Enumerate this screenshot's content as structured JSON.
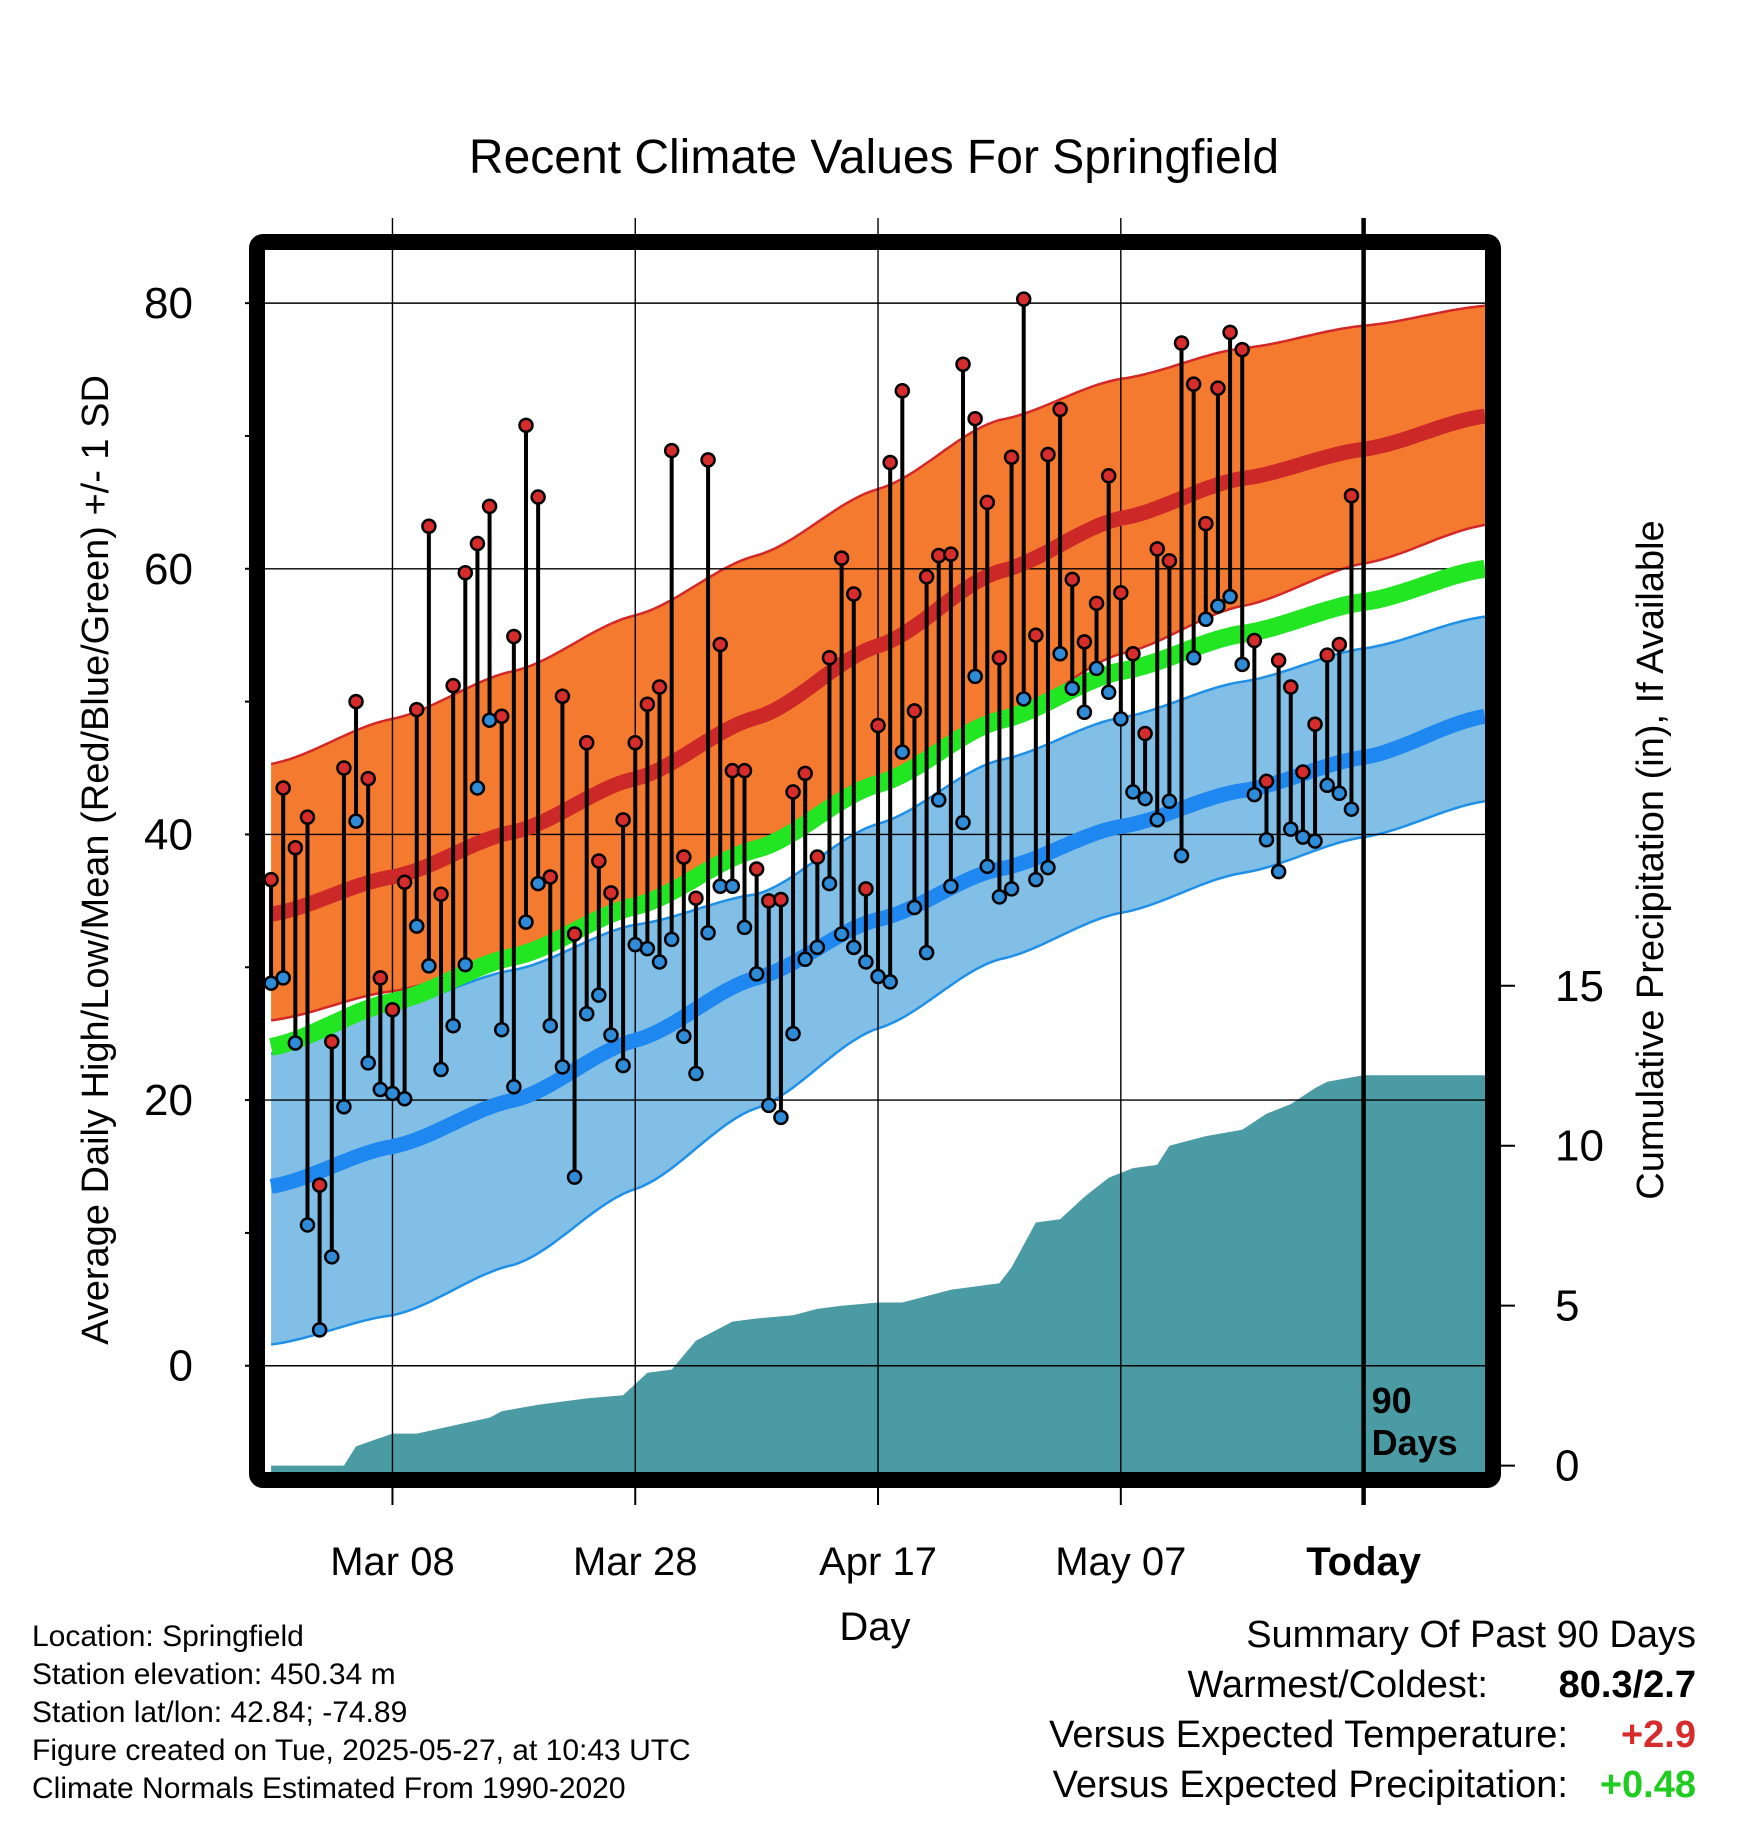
{
  "chart_data": {
    "type": "line",
    "title": "Recent Climate Values For Springfield",
    "xlabel": "Day",
    "ylabel_left": "Average Daily High/Low/Mean (Red/Blue/Green) +/- 1 SD",
    "ylabel_right": "Cumulative Precipitation (in), If Available",
    "x_tick_labels": [
      "Mar 08",
      "Mar 28",
      "Apr 17",
      "May 07",
      "Today"
    ],
    "x_tick_days": [
      10,
      30,
      50,
      70,
      90
    ],
    "xlim": [
      -0.5,
      100
    ],
    "ylim_left": [
      -8,
      84
    ],
    "left_ticks": [
      0,
      20,
      40,
      60,
      80
    ],
    "left_minor_ticks": [
      -10,
      10,
      30,
      50,
      70
    ],
    "right_ticks": [
      0,
      5,
      10,
      15
    ],
    "ylim_right": [
      -0.2,
      38
    ],
    "today_label": "90 Days",
    "grid": true,
    "colors": {
      "high_band": "#f47a2f",
      "high_band_edge": "#d42828",
      "high_mean": "#cc2828",
      "low_band": "#82bfe6",
      "low_band_edge": "#1e90e8",
      "low_mean": "#1e88f0",
      "mean_line": "#22e622",
      "precip_fill": "#4a9ba4",
      "high_dot": "#d62c2c",
      "low_dot": "#2e8bd8",
      "warm": "#d62c2c",
      "precip_good": "#1fcc1f"
    },
    "normals": {
      "days": [
        0,
        10,
        20,
        30,
        40,
        50,
        60,
        70,
        80,
        90,
        100
      ],
      "high_mean": [
        34,
        36.8,
        40.2,
        44.2,
        48.8,
        54.2,
        59.8,
        63.8,
        66.8,
        69,
        71.5
      ],
      "high_upper": [
        45.3,
        48.7,
        52.3,
        56.5,
        61,
        66,
        71.2,
        74.3,
        76.6,
        78.3,
        79.8
      ],
      "high_lower": [
        26,
        28.2,
        30.8,
        34.5,
        38.5,
        43.5,
        48.5,
        53.6,
        57.2,
        60.4,
        63.3
      ],
      "mean_line": [
        24,
        27.4,
        30.8,
        34.6,
        38.9,
        43.8,
        48.6,
        52.3,
        55.1,
        57.5,
        60
      ],
      "low_mean": [
        13.5,
        16.5,
        20,
        24.5,
        29.2,
        33.6,
        37.4,
        40.6,
        43.3,
        45.8,
        48.9
      ],
      "low_upper": [
        23.5,
        27,
        29.8,
        33.2,
        35.5,
        40.8,
        45.6,
        48.8,
        51.5,
        54,
        56.4
      ],
      "low_lower": [
        1.6,
        3.8,
        7.6,
        13.3,
        19.4,
        25.4,
        30.6,
        34.1,
        37.1,
        39.8,
        42.5
      ]
    },
    "daily": {
      "highs": [
        36.6,
        43.5,
        39,
        41.3,
        13.6,
        24.4,
        45,
        50,
        44.2,
        29.2,
        26.8,
        36.4,
        49.4,
        63.2,
        35.5,
        51.2,
        59.7,
        61.9,
        64.7,
        48.9,
        54.9,
        70.8,
        65.4,
        36.8,
        50.4,
        32.5,
        46.9,
        38,
        35.6,
        41.1,
        46.9,
        49.8,
        51.1,
        68.9,
        38.3,
        35.2,
        68.2,
        54.3,
        44.8,
        44.8,
        37.4,
        35,
        35.1,
        43.2,
        44.6,
        38.3,
        53.3,
        60.8,
        58.1,
        35.9,
        48.2,
        68,
        73.4,
        49.3,
        59.4,
        61,
        61.1,
        75.4,
        71.3,
        65,
        53.3,
        68.4,
        80.3,
        55,
        68.6,
        72,
        59.2,
        54.5,
        57.4,
        67,
        58.2,
        53.6,
        47.6,
        61.5,
        60.6,
        77,
        73.9,
        63.4,
        73.6,
        77.8,
        76.5,
        54.6,
        44,
        53.1,
        51.1,
        44.7,
        48.3,
        53.5,
        54.3,
        65.5
      ],
      "lows": [
        28.8,
        29.2,
        24.3,
        10.6,
        2.7,
        8.2,
        19.5,
        41,
        22.8,
        20.8,
        20.5,
        20.1,
        33.1,
        30.1,
        22.3,
        25.6,
        30.2,
        43.5,
        48.6,
        25.3,
        21,
        33.4,
        36.3,
        25.6,
        22.5,
        14.2,
        26.5,
        27.9,
        24.9,
        22.6,
        31.7,
        31.4,
        30.4,
        32.1,
        24.8,
        22,
        32.6,
        36.1,
        36.1,
        33,
        29.5,
        19.6,
        18.7,
        25,
        30.6,
        31.5,
        36.3,
        32.5,
        31.5,
        30.4,
        29.3,
        28.9,
        46.2,
        34.5,
        31.1,
        42.6,
        36.1,
        40.9,
        51.9,
        37.6,
        35.3,
        35.9,
        50.2,
        36.6,
        37.5,
        53.6,
        51,
        49.2,
        52.5,
        50.7,
        48.7,
        43.2,
        42.7,
        41.1,
        42.5,
        38.4,
        53.3,
        56.2,
        57.2,
        57.9,
        52.8,
        43,
        39.6,
        37.2,
        40.4,
        39.8,
        39.5,
        43.7,
        43.1,
        41.9
      ]
    },
    "precipitation": {
      "days": [
        0,
        6,
        7,
        10,
        12,
        18,
        19,
        22,
        26,
        29,
        31,
        33,
        35,
        36,
        38,
        40,
        43,
        45,
        47,
        50,
        52,
        56,
        58,
        60,
        61,
        63,
        65,
        67,
        69,
        71,
        73,
        74,
        77,
        80,
        82,
        84,
        86,
        87,
        90,
        100
      ],
      "values": [
        0,
        0,
        0.6,
        1.0,
        1.0,
        1.5,
        1.7,
        1.9,
        2.1,
        2.2,
        2.9,
        3.0,
        3.9,
        4.1,
        4.5,
        4.6,
        4.7,
        4.9,
        5.0,
        5.1,
        5.1,
        5.5,
        5.6,
        5.7,
        6.2,
        7.6,
        7.7,
        8.4,
        9.0,
        9.3,
        9.4,
        10.0,
        10.3,
        10.5,
        11.0,
        11.3,
        11.8,
        12.0,
        12.2,
        12.2
      ]
    }
  },
  "footer": {
    "location": "Location: Springfield",
    "elevation": "Station elevation: 450.34 m",
    "latlon": "Station lat/lon: 42.84; -74.89",
    "created": "Figure created on Tue, 2025-05-27, at 10:43 UTC",
    "normals": "Climate Normals Estimated From 1990-2020"
  },
  "summary": {
    "heading": "Summary Of Past 90 Days",
    "warmest_coldest_label": "Warmest/Coldest:",
    "warmest_coldest_value": "80.3/2.7",
    "temp_label": "Versus Expected Temperature:",
    "temp_value": "+2.9",
    "precip_label": "Versus Expected Precipitation:",
    "precip_value": "+0.48"
  }
}
